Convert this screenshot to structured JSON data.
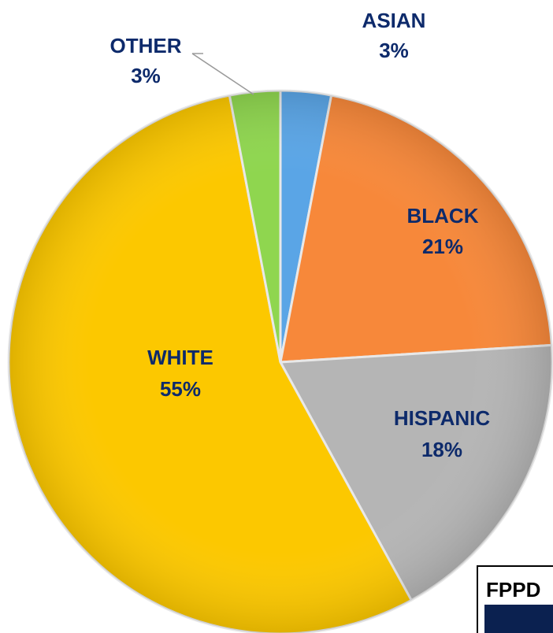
{
  "chart_data": {
    "type": "pie",
    "title": "",
    "slices": [
      {
        "name": "ASIAN",
        "label": "3%",
        "value": 3,
        "color": "#5aa5e6"
      },
      {
        "name": "BLACK",
        "label": "21%",
        "value": 21,
        "color": "#f7883a"
      },
      {
        "name": "HISPANIC",
        "label": "18%",
        "value": 18,
        "color": "#b5b5b5"
      },
      {
        "name": "WHITE",
        "label": "55%",
        "value": 55,
        "color": "#fcc800"
      },
      {
        "name": "OTHER",
        "label": "3%",
        "value": 3,
        "color": "#8fd64f"
      }
    ],
    "label_color": "#0d2a6b",
    "start_angle_deg": 0,
    "direction": "clockwise"
  },
  "badge": {
    "text": "FPPD",
    "bar_color": "#0b2150"
  }
}
